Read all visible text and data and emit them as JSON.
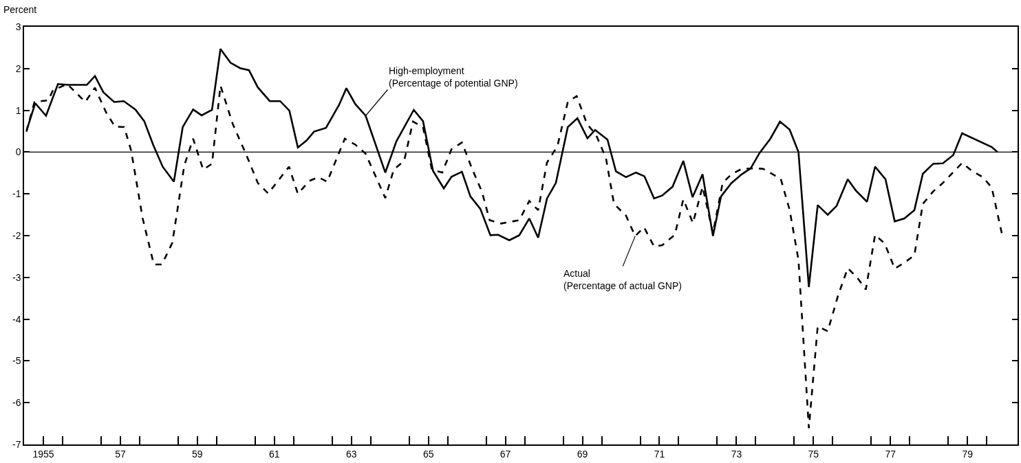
{
  "chart_data": {
    "type": "line",
    "ylabel": "Percent",
    "xlim": [
      1954.5,
      1980.3
    ],
    "ylim": [
      -7,
      3
    ],
    "yticks": [
      -7,
      -6,
      -5,
      -4,
      -3,
      -2,
      -1,
      0,
      1,
      2,
      3
    ],
    "xticks": [
      {
        "value": 1955,
        "label": "1955"
      },
      {
        "value": 1955.5,
        "label": null
      },
      {
        "value": 1956.5,
        "label": null
      },
      {
        "value": 1957,
        "label": "57"
      },
      {
        "value": 1957.5,
        "label": null
      },
      {
        "value": 1958.5,
        "label": null
      },
      {
        "value": 1959,
        "label": "59"
      },
      {
        "value": 1959.5,
        "label": null
      },
      {
        "value": 1960.5,
        "label": null
      },
      {
        "value": 1961,
        "label": "61"
      },
      {
        "value": 1961.5,
        "label": null
      },
      {
        "value": 1962.5,
        "label": null
      },
      {
        "value": 1963,
        "label": "63"
      },
      {
        "value": 1963.5,
        "label": null
      },
      {
        "value": 1964.5,
        "label": null
      },
      {
        "value": 1965,
        "label": "65"
      },
      {
        "value": 1965.5,
        "label": null
      },
      {
        "value": 1966.5,
        "label": null
      },
      {
        "value": 1967,
        "label": "67"
      },
      {
        "value": 1967.5,
        "label": null
      },
      {
        "value": 1968.5,
        "label": null
      },
      {
        "value": 1969,
        "label": "69"
      },
      {
        "value": 1969.5,
        "label": null
      },
      {
        "value": 1970.5,
        "label": null
      },
      {
        "value": 1971,
        "label": "71"
      },
      {
        "value": 1971.5,
        "label": null
      },
      {
        "value": 1972.5,
        "label": null
      },
      {
        "value": 1973,
        "label": "73"
      },
      {
        "value": 1973.5,
        "label": null
      },
      {
        "value": 1974.5,
        "label": null
      },
      {
        "value": 1975,
        "label": "75"
      },
      {
        "value": 1975.5,
        "label": null
      },
      {
        "value": 1976.5,
        "label": null
      },
      {
        "value": 1977,
        "label": "77"
      },
      {
        "value": 1977.5,
        "label": null
      },
      {
        "value": 1978.5,
        "label": null
      },
      {
        "value": 1979,
        "label": "79"
      },
      {
        "value": 1979.5,
        "label": null
      }
    ],
    "marker": "none",
    "ref_lines": [
      {
        "axis": "y",
        "value": 0,
        "color": "#000000",
        "line_style": "solid"
      }
    ],
    "annotations": [
      {
        "text": "High-employment\n(Percentage of potential GNP)",
        "x": 1963.37,
        "y": 0.87
      },
      {
        "text": "Actual\n(Percentage of actual GNP)",
        "x": 1970.37,
        "y": -2.01
      }
    ],
    "series": [
      {
        "color": "#000000",
        "line_style": "solid",
        "x": [
          1954.57,
          1954.79,
          1955.07,
          1955.38,
          1955.63,
          1956.13,
          1956.34,
          1956.56,
          1956.84,
          1957.09,
          1957.39,
          1957.62,
          1957.85,
          1958.1,
          1958.39,
          1958.62,
          1958.89,
          1959.11,
          1959.38,
          1959.6,
          1959.86,
          1960.11,
          1960.34,
          1960.57,
          1960.88,
          1961.15,
          1961.39,
          1961.61,
          1961.84,
          1962.03,
          1962.34,
          1962.68,
          1962.87,
          1963.1,
          1963.37,
          1963.88,
          1964.17,
          1964.62,
          1964.86,
          1965.12,
          1965.4,
          1965.6,
          1965.87,
          1966.09,
          1966.35,
          1966.61,
          1966.81,
          1967.1,
          1967.36,
          1967.62,
          1967.85,
          1968.08,
          1968.31,
          1968.62,
          1968.87,
          1969.13,
          1969.33,
          1969.65,
          1969.87,
          1970.13,
          1970.39,
          1970.61,
          1970.86,
          1971.07,
          1971.34,
          1971.62,
          1971.86,
          1972.12,
          1972.39,
          1972.6,
          1972.87,
          1973.14,
          1973.37,
          1973.6,
          1973.88,
          1974.13,
          1974.38,
          1974.61,
          1974.88,
          1975.11,
          1975.37,
          1975.6,
          1975.89,
          1976.1,
          1976.39,
          1976.6,
          1976.87,
          1977.11,
          1977.36,
          1977.62,
          1977.84,
          1978.11,
          1978.36,
          1978.63,
          1978.86,
          1979.63,
          1979.78
        ],
        "values": [
          0.53,
          1.17,
          0.87,
          1.63,
          1.61,
          1.61,
          1.82,
          1.43,
          1.2,
          1.22,
          1.02,
          0.74,
          0.18,
          -0.35,
          -0.71,
          0.6,
          1.02,
          0.88,
          1.01,
          2.47,
          2.14,
          2.01,
          1.96,
          1.55,
          1.22,
          1.22,
          0.99,
          0.11,
          0.28,
          0.49,
          0.58,
          1.13,
          1.53,
          1.15,
          0.87,
          -0.49,
          0.26,
          1.01,
          0.74,
          -0.45,
          -0.87,
          -0.59,
          -0.47,
          -1.06,
          -1.36,
          -1.99,
          -1.98,
          -2.11,
          -1.99,
          -1.59,
          -2.05,
          -1.11,
          -0.74,
          0.6,
          0.81,
          0.33,
          0.53,
          0.3,
          -0.46,
          -0.6,
          -0.49,
          -0.58,
          -1.11,
          -1.04,
          -0.83,
          -0.21,
          -1.08,
          -0.53,
          -2.01,
          -1.06,
          -0.74,
          -0.53,
          -0.39,
          -0.02,
          0.32,
          0.73,
          0.54,
          0.0,
          -3.23,
          -1.27,
          -1.5,
          -1.29,
          -0.65,
          -0.92,
          -1.19,
          -0.35,
          -0.65,
          -1.66,
          -1.59,
          -1.39,
          -0.52,
          -0.28,
          -0.27,
          -0.07,
          0.45,
          0.12,
          0.0
        ]
      },
      {
        "color": "#000000",
        "line_style": "dashed",
        "x": [
          1954.56,
          1954.77,
          1955.13,
          1955.25,
          1955.62,
          1956.09,
          1956.34,
          1956.63,
          1956.86,
          1957.1,
          1957.28,
          1957.58,
          1957.87,
          1958.08,
          1958.35,
          1958.66,
          1958.89,
          1959.15,
          1959.38,
          1959.6,
          1959.92,
          1960.26,
          1960.57,
          1960.84,
          1961.38,
          1961.61,
          1961.91,
          1962.14,
          1962.37,
          1962.83,
          1963.1,
          1963.37,
          1963.88,
          1964.1,
          1964.37,
          1964.6,
          1964.86,
          1965.09,
          1965.36,
          1965.6,
          1965.87,
          1966.13,
          1966.39,
          1966.59,
          1966.89,
          1967.36,
          1967.62,
          1967.85,
          1968.08,
          1968.35,
          1968.62,
          1968.85,
          1969.12,
          1969.35,
          1969.61,
          1969.82,
          1970.13,
          1970.37,
          1970.6,
          1970.86,
          1971.07,
          1971.4,
          1971.62,
          1971.87,
          1972.12,
          1972.39,
          1972.64,
          1972.87,
          1973.14,
          1973.48,
          1973.69,
          1974.15,
          1974.38,
          1974.61,
          1974.88,
          1975.11,
          1975.37,
          1975.64,
          1975.89,
          1976.13,
          1976.36,
          1976.6,
          1976.85,
          1977.11,
          1977.36,
          1977.62,
          1977.84,
          1978.11,
          1978.36,
          1978.86,
          1979.13,
          1979.4,
          1979.63,
          1979.89
        ],
        "values": [
          0.49,
          1.2,
          1.24,
          1.48,
          1.63,
          1.2,
          1.54,
          0.95,
          0.61,
          0.6,
          0.04,
          -1.59,
          -2.69,
          -2.69,
          -2.17,
          -0.32,
          0.32,
          -0.42,
          -0.28,
          1.59,
          0.67,
          -0.04,
          -0.74,
          -0.99,
          -0.35,
          -1.0,
          -0.69,
          -0.6,
          -0.71,
          0.32,
          0.18,
          -0.04,
          -1.1,
          -0.42,
          -0.21,
          0.73,
          0.6,
          -0.42,
          -0.49,
          0.07,
          0.23,
          -0.39,
          -0.95,
          -1.63,
          -1.71,
          -1.63,
          -1.17,
          -1.39,
          -0.25,
          0.14,
          1.2,
          1.34,
          0.67,
          0.42,
          -0.14,
          -1.24,
          -1.52,
          -2.01,
          -1.8,
          -2.26,
          -2.23,
          -1.98,
          -1.13,
          -1.7,
          -0.83,
          -1.94,
          -0.74,
          -0.53,
          -0.4,
          -0.39,
          -0.4,
          -0.64,
          -1.38,
          -2.58,
          -6.61,
          -4.17,
          -4.29,
          -3.43,
          -2.78,
          -3.0,
          -3.29,
          -1.98,
          -2.19,
          -2.79,
          -2.65,
          -2.47,
          -1.24,
          -0.94,
          -0.74,
          -0.26,
          -0.46,
          -0.6,
          -0.85,
          -1.94
        ]
      }
    ]
  }
}
